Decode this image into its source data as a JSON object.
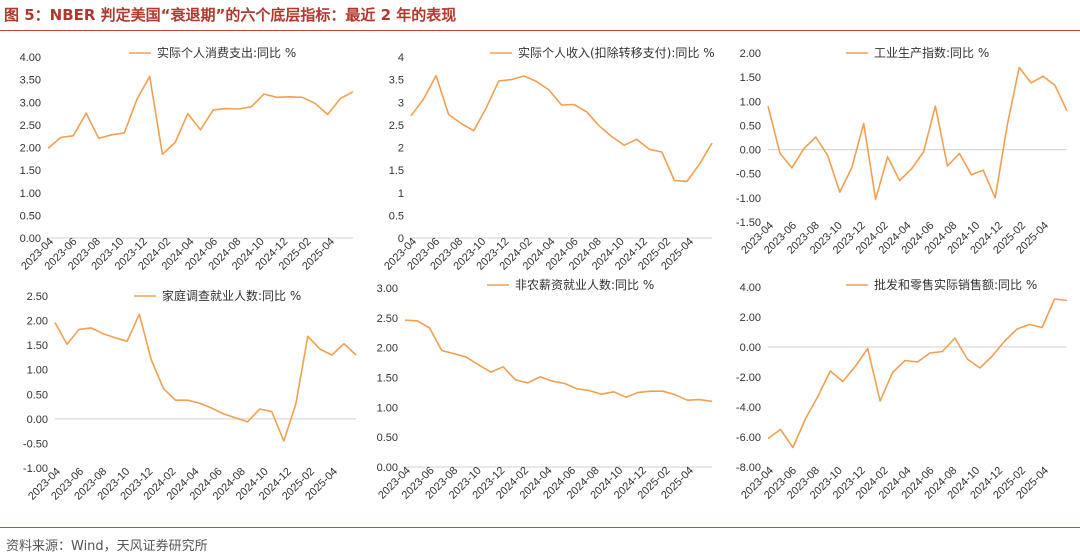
{
  "figure": {
    "title": "图 5：NBER 判定美国“衰退期”的六个底层指标：最近 2 年的表现",
    "source": "资料来源：Wind，天风证券研究所",
    "line_color": "#F0A050"
  },
  "chart_data": [
    {
      "type": "line",
      "legend": "实际个人消费支出:同比 %",
      "ylim": [
        0,
        4
      ],
      "yticks": [
        "0.00",
        "0.50",
        "1.00",
        "1.50",
        "2.00",
        "2.50",
        "3.00",
        "3.50",
        "4.00"
      ],
      "xticks": [
        "2023-04",
        "2023-06",
        "2023-08",
        "2023-10",
        "2023-12",
        "2024-02",
        "2024-04",
        "2024-06",
        "2024-08",
        "2024-10",
        "2024-12",
        "2025-02",
        "2025-04"
      ],
      "series": [
        {
          "values": [
            1.98,
            2.22,
            2.26,
            2.76,
            2.2,
            2.28,
            2.32,
            3.07,
            3.57,
            1.85,
            2.11,
            2.75,
            2.39,
            2.83,
            2.86,
            2.85,
            2.9,
            3.18,
            3.11,
            3.12,
            3.11,
            2.98,
            2.73,
            3.08,
            3.23
          ]
        }
      ]
    },
    {
      "type": "line",
      "legend": "实际个人收入(扣除转移支付):同比 %",
      "ylim": [
        0,
        4
      ],
      "yticks": [
        "0",
        "0.5",
        "1",
        "1.5",
        "2",
        "2.5",
        "3",
        "3.5",
        "4"
      ],
      "xticks": [
        "2023-04",
        "2023-06",
        "2023-08",
        "2023-10",
        "2023-12",
        "2024-02",
        "2024-04",
        "2024-06",
        "2024-08",
        "2024-10",
        "2024-12",
        "2025-02",
        "2025-04"
      ],
      "series": [
        {
          "values": [
            2.7,
            3.07,
            3.59,
            2.73,
            2.53,
            2.37,
            2.88,
            3.47,
            3.5,
            3.58,
            3.46,
            3.27,
            2.94,
            2.95,
            2.79,
            2.48,
            2.24,
            2.05,
            2.18,
            1.96,
            1.9,
            1.27,
            1.25,
            1.63,
            2.1
          ]
        }
      ]
    },
    {
      "type": "line",
      "legend": "工业生产指数:同比 %",
      "ylim": [
        -1.5,
        2
      ],
      "yticks": [
        "-1.50",
        "-1.00",
        "-0.50",
        "0.00",
        "0.50",
        "1.00",
        "1.50",
        "2.00"
      ],
      "xticks": [
        "2023-04",
        "2023-06",
        "2023-08",
        "2023-10",
        "2023-12",
        "2024-02",
        "2024-04",
        "2024-06",
        "2024-08",
        "2024-10",
        "2024-12",
        "2025-02",
        "2025-04"
      ],
      "series": [
        {
          "values": [
            0.9,
            -0.08,
            -0.38,
            0.02,
            0.26,
            -0.13,
            -0.88,
            -0.38,
            0.54,
            -1.03,
            -0.15,
            -0.64,
            -0.4,
            -0.05,
            0.9,
            -0.34,
            -0.08,
            -0.52,
            -0.43,
            -1.0,
            0.5,
            1.7,
            1.38,
            1.52,
            1.33,
            0.8
          ]
        }
      ]
    },
    {
      "type": "line",
      "legend": "家庭调查就业人数:同比 %",
      "ylim": [
        -1,
        2.5
      ],
      "yticks": [
        "-1.00",
        "-0.50",
        "0.00",
        "0.50",
        "1.00",
        "1.50",
        "2.00",
        "2.50"
      ],
      "xticks": [
        "2023-04",
        "2023-06",
        "2023-08",
        "2023-10",
        "2023-12",
        "2024-02",
        "2024-04",
        "2024-06",
        "2024-08",
        "2024-10",
        "2024-12",
        "2025-02",
        "2025-04"
      ],
      "series": [
        {
          "values": [
            1.96,
            1.52,
            1.82,
            1.85,
            1.73,
            1.65,
            1.58,
            2.13,
            1.2,
            0.62,
            0.38,
            0.38,
            0.32,
            0.22,
            0.1,
            0.02,
            -0.06,
            0.2,
            0.15,
            -0.45,
            0.3,
            1.68,
            1.42,
            1.3,
            1.53,
            1.3
          ]
        }
      ]
    },
    {
      "type": "line",
      "legend": "非农薪资就业人数:同比 %",
      "ylim": [
        0,
        3
      ],
      "yticks": [
        "0.00",
        "0.50",
        "1.00",
        "1.50",
        "2.00",
        "2.50",
        "3.00"
      ],
      "xticks": [
        "2023-04",
        "2023-06",
        "2023-08",
        "2023-10",
        "2023-12",
        "2024-02",
        "2024-04",
        "2024-06",
        "2024-08",
        "2024-10",
        "2024-12",
        "2025-02",
        "2025-04"
      ],
      "series": [
        {
          "values": [
            2.46,
            2.45,
            2.33,
            1.95,
            1.9,
            1.84,
            1.71,
            1.59,
            1.68,
            1.46,
            1.41,
            1.51,
            1.44,
            1.4,
            1.31,
            1.28,
            1.22,
            1.26,
            1.17,
            1.25,
            1.27,
            1.27,
            1.21,
            1.12,
            1.13,
            1.1
          ]
        }
      ]
    },
    {
      "type": "line",
      "legend": "批发和零售实际销售额:同比 %",
      "ylim": [
        -8,
        4
      ],
      "yticks": [
        "-8.00",
        "-6.00",
        "-4.00",
        "-2.00",
        "0.00",
        "2.00",
        "4.00"
      ],
      "xticks": [
        "2023-04",
        "2023-06",
        "2023-08",
        "2023-10",
        "2023-12",
        "2024-02",
        "2024-04",
        "2024-06",
        "2024-08",
        "2024-10",
        "2024-12",
        "2025-02",
        "2025-04"
      ],
      "series": [
        {
          "values": [
            -6.1,
            -5.5,
            -6.7,
            -4.8,
            -3.3,
            -1.6,
            -2.3,
            -1.3,
            -0.1,
            -3.6,
            -1.7,
            -0.9,
            -1.0,
            -0.4,
            -0.3,
            0.6,
            -0.8,
            -1.4,
            -0.6,
            0.4,
            1.2,
            1.5,
            1.3,
            3.2,
            3.1
          ]
        }
      ]
    }
  ]
}
